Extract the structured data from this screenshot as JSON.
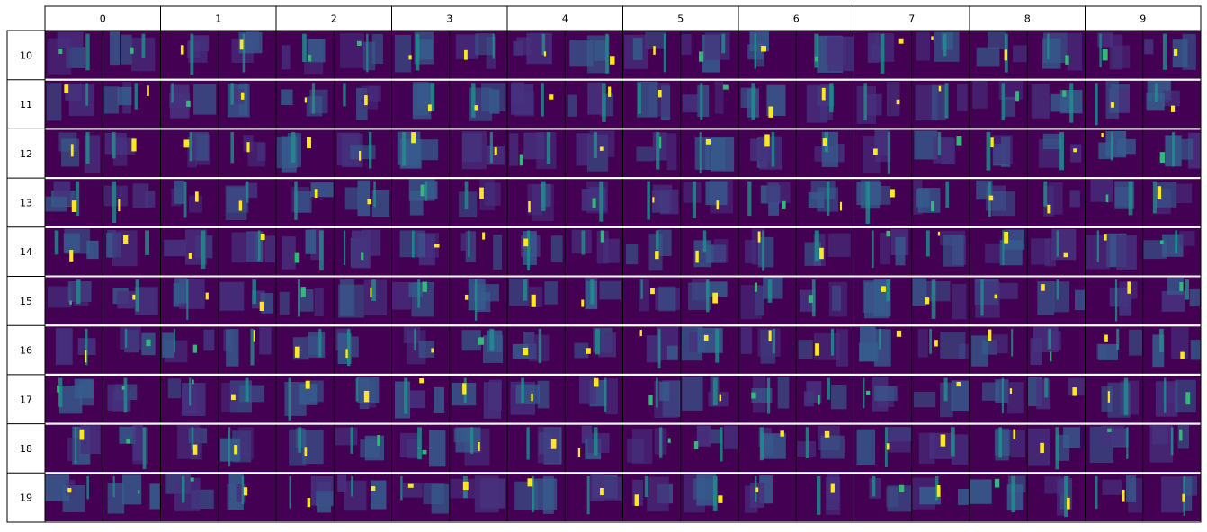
{
  "column_headers": [
    "0",
    "1",
    "2",
    "3",
    "4",
    "5",
    "6",
    "7",
    "8",
    "9"
  ],
  "row_headers": [
    "10",
    "11",
    "12",
    "13",
    "14",
    "15",
    "16",
    "17",
    "18",
    "19"
  ],
  "colors": {
    "background": "#440154",
    "low": "#46327e",
    "mid": "#365c8d",
    "teal": "#21918c",
    "green": "#35b779",
    "bright": "#fde725",
    "border": "#000000",
    "row_separator": "#ffffff"
  }
}
